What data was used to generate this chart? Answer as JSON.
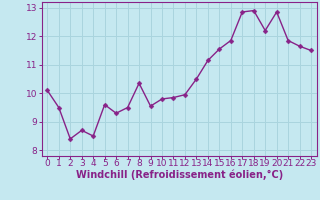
{
  "x": [
    0,
    1,
    2,
    3,
    4,
    5,
    6,
    7,
    8,
    9,
    10,
    11,
    12,
    13,
    14,
    15,
    16,
    17,
    18,
    19,
    20,
    21,
    22,
    23
  ],
  "y": [
    10.1,
    9.5,
    8.4,
    8.7,
    8.5,
    9.6,
    9.3,
    9.5,
    10.35,
    9.55,
    9.8,
    9.85,
    9.95,
    10.5,
    11.15,
    11.55,
    11.85,
    12.85,
    12.9,
    12.2,
    12.85,
    11.85,
    11.65,
    11.5
  ],
  "line_color": "#882288",
  "marker": "D",
  "markersize": 2.5,
  "linewidth": 1.0,
  "xlabel": "Windchill (Refroidissement éolien,°C)",
  "xlim": [
    -0.5,
    23.5
  ],
  "ylim": [
    7.8,
    13.2
  ],
  "yticks": [
    8,
    9,
    10,
    11,
    12,
    13
  ],
  "xticks": [
    0,
    1,
    2,
    3,
    4,
    5,
    6,
    7,
    8,
    9,
    10,
    11,
    12,
    13,
    14,
    15,
    16,
    17,
    18,
    19,
    20,
    21,
    22,
    23
  ],
  "bg_color": "#c5e8f0",
  "grid_color": "#aad4de",
  "tick_color": "#882288",
  "label_color": "#882288",
  "xlabel_fontsize": 7,
  "tick_fontsize": 6.5,
  "border_color": "#882288"
}
